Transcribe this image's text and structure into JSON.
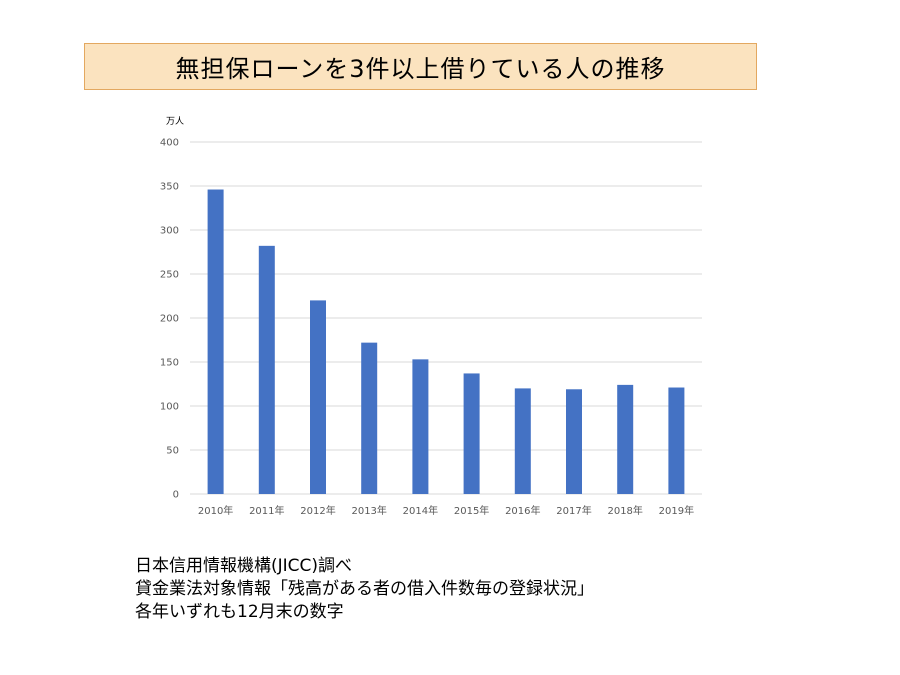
{
  "slide": {
    "title": "無担保ローンを3件以上借りている人の推移",
    "notes": [
      "日本信用情報機構(JICC)調べ",
      "貸金業法対象情報「残高がある者の借入件数毎の登録状況」",
      "各年いずれも12月末の数字"
    ]
  },
  "colors": {
    "bar": "#4472c4",
    "grid": "#d9d9d9",
    "title_bg": "#fbe3bf",
    "title_border": "#e3a860"
  },
  "chart_data": {
    "type": "bar",
    "unit_label": "万人",
    "categories": [
      "2010年",
      "2011年",
      "2012年",
      "2013年",
      "2014年",
      "2015年",
      "2016年",
      "2017年",
      "2018年",
      "2019年"
    ],
    "values": [
      346,
      282,
      220,
      172,
      153,
      137,
      120,
      119,
      124,
      121
    ],
    "ylim": [
      0,
      400
    ],
    "yticks": [
      0,
      50,
      100,
      150,
      200,
      250,
      300,
      350,
      400
    ],
    "grid": true,
    "legend": "none"
  }
}
